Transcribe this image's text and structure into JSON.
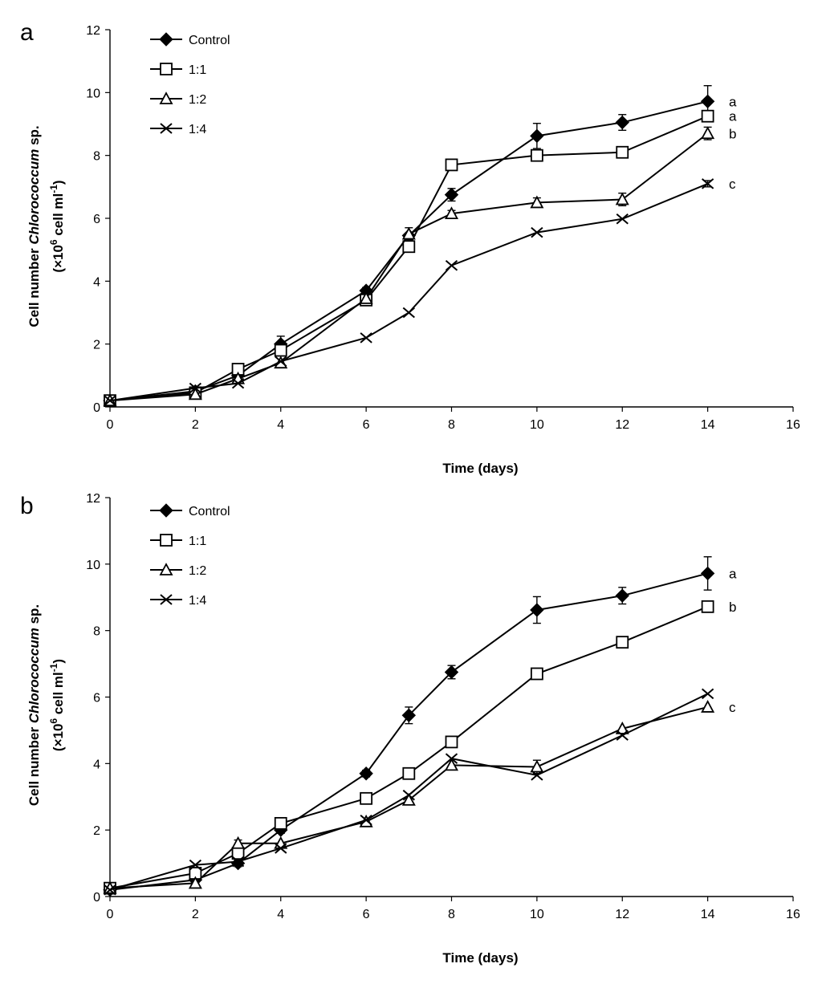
{
  "chart_data": [
    {
      "panel": "a",
      "type": "line",
      "xlabel": "Time (days)",
      "ylabel_parts": {
        "pre": "Cell number ",
        "italic": "Chlorococcum",
        "post": " sp.",
        "line2_pre": "(×10",
        "sup1": "6",
        "line2_mid": " cell ml",
        "sup2": "-1",
        "line2_post": ")"
      },
      "xlim": [
        0,
        16
      ],
      "ylim": [
        0,
        12
      ],
      "xticks": [
        0,
        2,
        4,
        6,
        8,
        10,
        12,
        14,
        16
      ],
      "yticks": [
        0,
        2,
        4,
        6,
        8,
        10,
        12
      ],
      "x": [
        0,
        2,
        3,
        4,
        6,
        7,
        8,
        10,
        12,
        14
      ],
      "series": [
        {
          "name": "Control",
          "marker": "diamond",
          "values": [
            0.2,
            0.5,
            1.0,
            2.0,
            3.7,
            5.45,
            6.75,
            8.62,
            9.05,
            9.72
          ],
          "errors": [
            0.05,
            0.05,
            0.1,
            0.25,
            0.1,
            0.25,
            0.2,
            0.4,
            0.25,
            0.5
          ],
          "sig": "a"
        },
        {
          "name": "1:1",
          "marker": "square",
          "values": [
            0.2,
            0.45,
            1.2,
            1.8,
            3.4,
            5.1,
            7.7,
            8.0,
            8.1,
            9.25
          ],
          "errors": [
            0,
            0,
            0,
            0,
            0,
            0,
            0,
            0,
            0,
            0
          ],
          "sig": "a"
        },
        {
          "name": "1:2",
          "marker": "triangle",
          "values": [
            0.2,
            0.4,
            0.9,
            1.4,
            3.45,
            5.5,
            6.15,
            6.5,
            6.6,
            8.7
          ],
          "errors": [
            0,
            0,
            0,
            0,
            0,
            0,
            0.1,
            0.15,
            0.2,
            0.2
          ],
          "sig": "b"
        },
        {
          "name": "1:4",
          "marker": "x",
          "values": [
            0.2,
            0.6,
            0.75,
            1.45,
            2.2,
            3.0,
            4.5,
            5.55,
            5.98,
            7.1
          ],
          "errors": [
            0,
            0,
            0,
            0,
            0,
            0,
            0,
            0,
            0,
            0.1
          ],
          "sig": "c"
        }
      ]
    },
    {
      "panel": "b",
      "type": "line",
      "xlabel": "Time (days)",
      "ylabel_parts": {
        "pre": "Cell number ",
        "italic": "Chlorococcum",
        "post": " sp.",
        "line2_pre": "(×10",
        "sup1": "6",
        "line2_mid": " cell ml",
        "sup2": "-1",
        "line2_post": ")"
      },
      "xlim": [
        0,
        16
      ],
      "ylim": [
        0,
        12
      ],
      "xticks": [
        0,
        2,
        4,
        6,
        8,
        10,
        12,
        14,
        16
      ],
      "yticks": [
        0,
        2,
        4,
        6,
        8,
        10,
        12
      ],
      "x": [
        0,
        2,
        3,
        4,
        6,
        7,
        8,
        10,
        12,
        14
      ],
      "series": [
        {
          "name": "Control",
          "marker": "diamond",
          "values": [
            0.2,
            0.5,
            1.0,
            2.0,
            3.7,
            5.45,
            6.75,
            8.62,
            9.05,
            9.72
          ],
          "errors": [
            0.05,
            0.05,
            0.1,
            0.1,
            0.1,
            0.25,
            0.2,
            0.4,
            0.25,
            0.5
          ],
          "sig": "a"
        },
        {
          "name": "1:1",
          "marker": "square",
          "values": [
            0.25,
            0.7,
            1.3,
            2.2,
            2.95,
            3.7,
            4.65,
            6.7,
            7.65,
            8.72
          ],
          "errors": [
            0,
            0,
            0,
            0,
            0,
            0,
            0,
            0,
            0,
            0
          ],
          "sig": "b"
        },
        {
          "name": "1:2",
          "marker": "triangle",
          "values": [
            0.25,
            0.4,
            1.6,
            1.6,
            2.25,
            2.9,
            3.95,
            3.9,
            5.05,
            5.7
          ],
          "errors": [
            0,
            0,
            0.1,
            0,
            0,
            0,
            0,
            0.2,
            0,
            0
          ],
          "sig": "c"
        },
        {
          "name": "1:4",
          "marker": "x",
          "values": [
            0.2,
            0.95,
            1.05,
            1.45,
            2.3,
            3.05,
            4.15,
            3.65,
            4.85,
            6.1
          ],
          "errors": [
            0,
            0,
            0,
            0,
            0,
            0,
            0,
            0,
            0,
            0
          ],
          "sig": ""
        }
      ]
    }
  ]
}
